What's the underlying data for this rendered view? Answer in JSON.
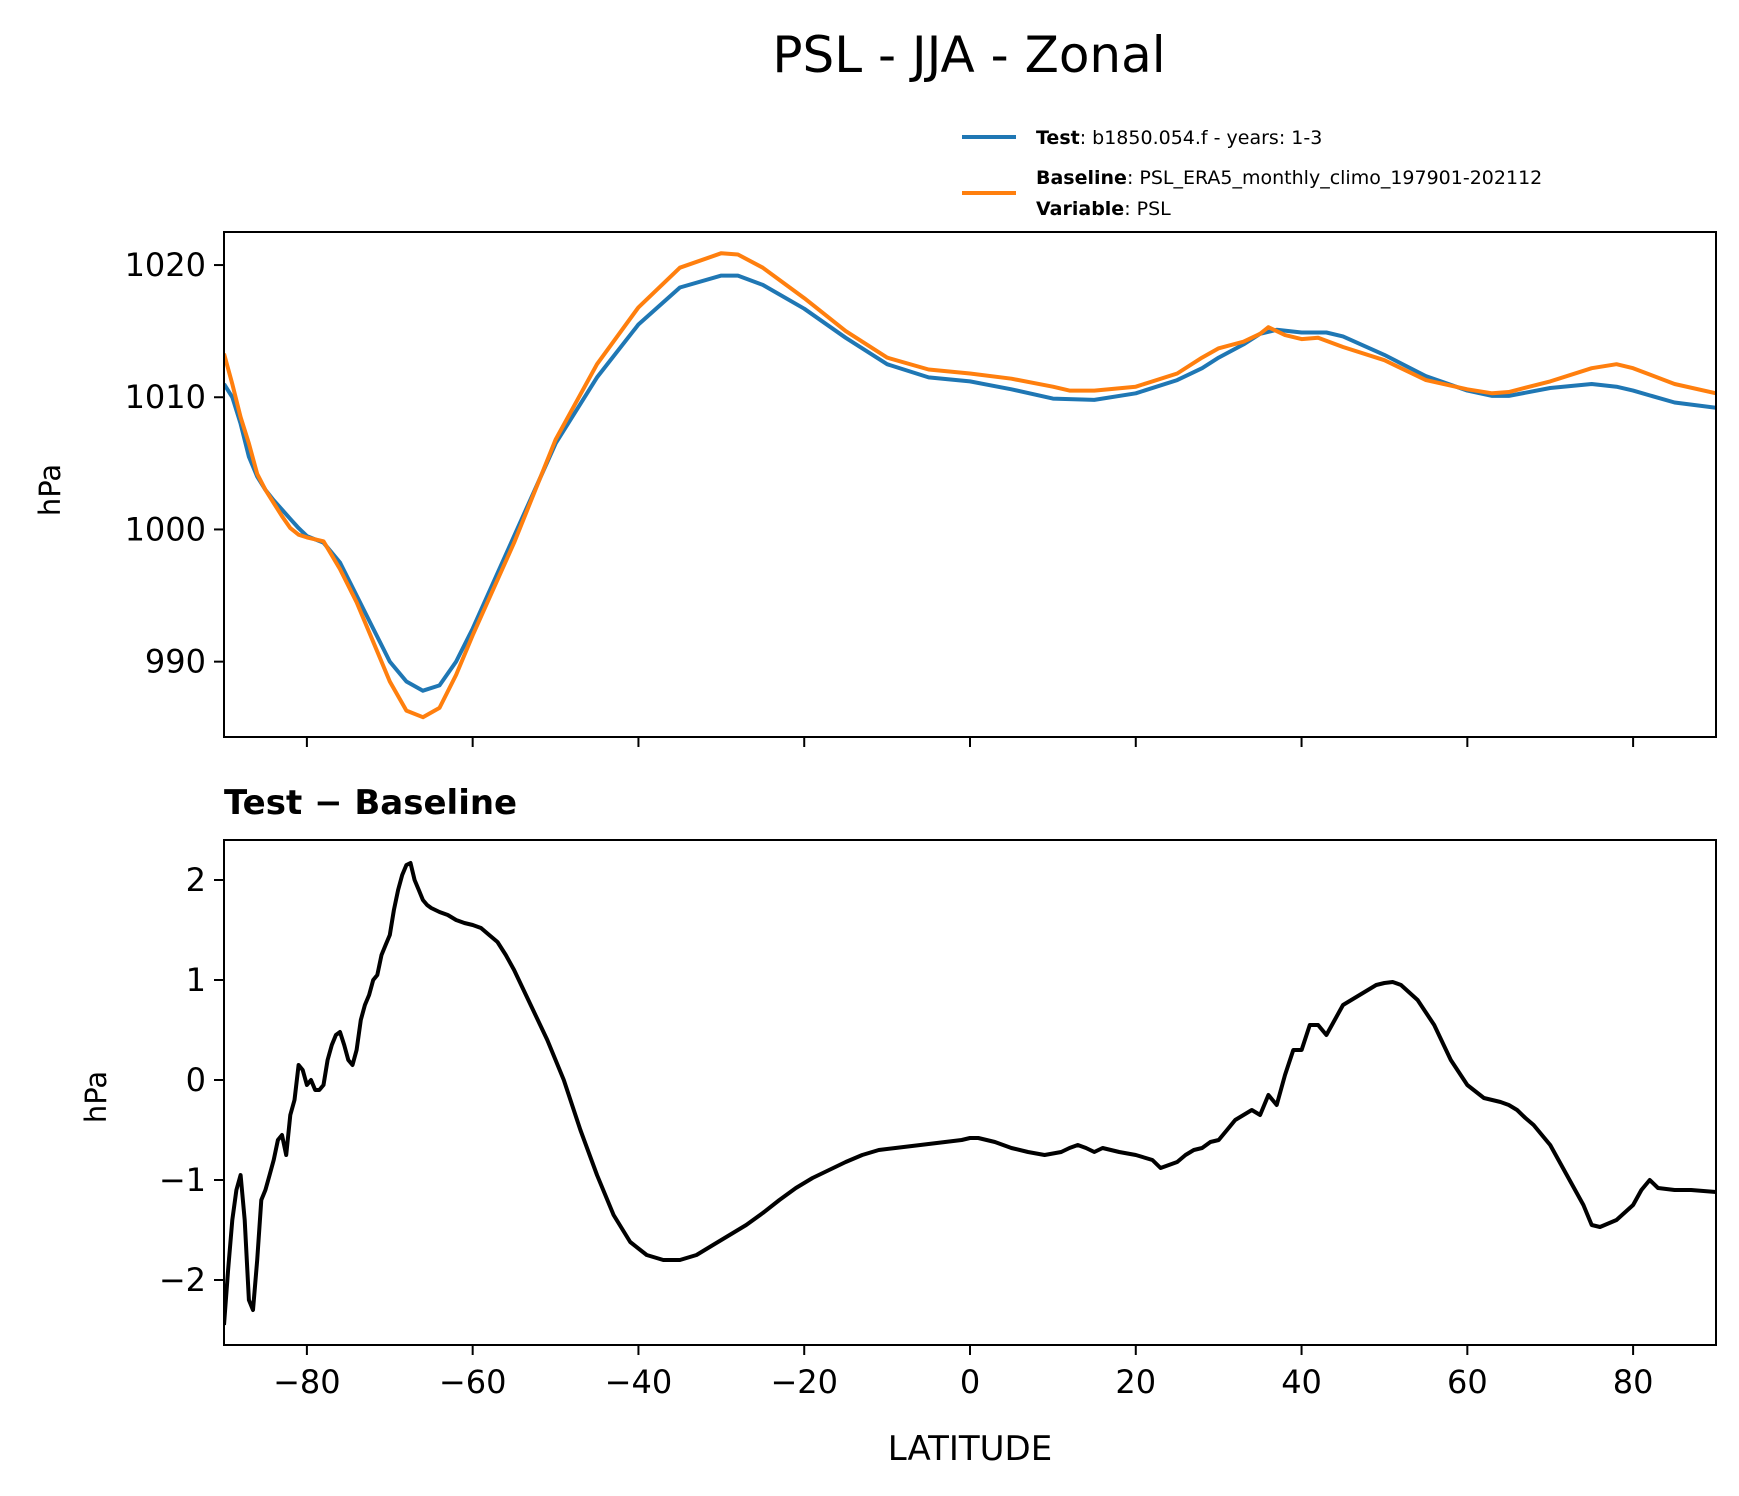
{
  "title": "PSL - JJA - Zonal",
  "legend": {
    "test_label": "Test",
    "test_value": ": b1850.054.f - years: 1-3",
    "baseline_label": "Baseline",
    "baseline_value": ": PSL_ERA5_monthly_climo_197901-202112",
    "variable_label": "Variable",
    "variable_value": ": PSL"
  },
  "colors": {
    "test": "#1f77b4",
    "baseline": "#ff7f0e",
    "difference": "#000000"
  },
  "chart_data": [
    {
      "type": "line",
      "ylabel": "hPa",
      "xlim": [
        -90,
        90
      ],
      "ylim": [
        984.3,
        1022.5
      ],
      "yticks": [
        "990",
        "1000",
        "1010",
        "1020"
      ],
      "xticks": [
        -80,
        -60,
        -40,
        -20,
        0,
        20,
        40,
        60,
        80
      ],
      "legend_position": "top-right, above plot",
      "grid": false,
      "series": [
        {
          "name": "Test",
          "x": [
            -90,
            -89,
            -88,
            -87,
            -86,
            -85,
            -84,
            -83,
            -82,
            -81,
            -80,
            -78,
            -76,
            -74,
            -72,
            -70,
            -68,
            -66,
            -64,
            -62,
            -60,
            -55,
            -50,
            -45,
            -40,
            -35,
            -30,
            -28,
            -25,
            -20,
            -15,
            -10,
            -5,
            0,
            5,
            10,
            15,
            20,
            25,
            28,
            30,
            33,
            35,
            37,
            40,
            43,
            45,
            50,
            55,
            60,
            63,
            65,
            70,
            75,
            78,
            80,
            85,
            90
          ],
          "y": [
            1011,
            1010,
            1008,
            1005.5,
            1004,
            1003,
            1002.2,
            1001.5,
            1000.8,
            1000.1,
            999.5,
            999,
            997.5,
            995,
            992.5,
            990,
            988.5,
            987.8,
            988.2,
            990,
            992.5,
            999.5,
            1006.5,
            1011.5,
            1015.5,
            1018.3,
            1019.2,
            1019.2,
            1018.5,
            1016.7,
            1014.5,
            1012.5,
            1011.5,
            1011.2,
            1010.6,
            1009.9,
            1009.8,
            1010.3,
            1011.3,
            1012.2,
            1013,
            1014,
            1014.8,
            1015.1,
            1014.9,
            1014.9,
            1014.6,
            1013.2,
            1011.6,
            1010.5,
            1010.1,
            1010.1,
            1010.7,
            1011,
            1010.8,
            1010.5,
            1009.6,
            1009.2
          ]
        },
        {
          "name": "Baseline",
          "x": [
            -90,
            -89,
            -88,
            -87,
            -86,
            -85,
            -84,
            -83,
            -82,
            -81,
            -80,
            -78,
            -76,
            -74,
            -72,
            -70,
            -68,
            -66,
            -64,
            -62,
            -60,
            -55,
            -50,
            -45,
            -40,
            -35,
            -30,
            -28,
            -25,
            -20,
            -15,
            -10,
            -5,
            0,
            5,
            10,
            12,
            15,
            20,
            25,
            28,
            30,
            33,
            35,
            36,
            38,
            40,
            42,
            45,
            50,
            55,
            60,
            63,
            65,
            70,
            75,
            78,
            80,
            85,
            90
          ],
          "y": [
            1013.3,
            1011,
            1008.5,
            1006.5,
            1004.2,
            1003,
            1002,
            1001,
            1000.1,
            999.6,
            999.4,
            999.1,
            997,
            994.5,
            991.5,
            988.5,
            986.3,
            985.8,
            986.5,
            989,
            992,
            999,
            1006.8,
            1012.5,
            1016.8,
            1019.8,
            1020.9,
            1020.8,
            1019.8,
            1017.5,
            1015,
            1013,
            1012.1,
            1011.8,
            1011.4,
            1010.8,
            1010.5,
            1010.5,
            1010.8,
            1011.8,
            1013,
            1013.7,
            1014.2,
            1014.8,
            1015.3,
            1014.7,
            1014.4,
            1014.5,
            1013.8,
            1012.8,
            1011.3,
            1010.6,
            1010.3,
            1010.4,
            1011.2,
            1012.2,
            1012.5,
            1012.2,
            1011,
            1010.3
          ]
        }
      ]
    },
    {
      "type": "line",
      "title": "Test − Baseline",
      "ylabel": "hPa",
      "xlabel": "LATITUDE",
      "xlim": [
        -90,
        90
      ],
      "ylim": [
        -2.65,
        2.4
      ],
      "yticks": [
        "−2",
        "−1",
        "0",
        "1",
        "2"
      ],
      "xtick_labels": [
        "−80",
        "−60",
        "−40",
        "−20",
        "0",
        "20",
        "40",
        "60",
        "80"
      ],
      "grid": false,
      "series": [
        {
          "x": [
            -90,
            -89.5,
            -89,
            -88.5,
            -88,
            -87.5,
            -87,
            -86.5,
            -86,
            -85.5,
            -85,
            -84.5,
            -84,
            -83.5,
            -83,
            -82.5,
            -82,
            -81.5,
            -81,
            -80.5,
            -80,
            -79.5,
            -79,
            -78.5,
            -78,
            -77.5,
            -77,
            -76.5,
            -76,
            -75.5,
            -75,
            -74.5,
            -74,
            -73.5,
            -73,
            -72.5,
            -72,
            -71.5,
            -71,
            -70.5,
            -70,
            -69.5,
            -69,
            -68.5,
            -68,
            -67.5,
            -67,
            -66.5,
            -66,
            -65.5,
            -65,
            -64,
            -63,
            -62,
            -61,
            -60,
            -59,
            -58,
            -57,
            -56,
            -55,
            -53,
            -51,
            -49,
            -47,
            -45,
            -43,
            -41,
            -39,
            -37,
            -35,
            -33,
            -31,
            -29,
            -27,
            -25,
            -23,
            -21,
            -19,
            -17,
            -15,
            -13,
            -11,
            -9,
            -7,
            -5,
            -3,
            -1,
            0,
            1,
            2,
            3,
            5,
            7,
            9,
            11,
            12,
            13,
            14,
            15,
            16,
            17,
            18,
            20,
            22,
            23,
            25,
            26,
            27,
            28,
            29,
            30,
            31,
            32,
            33,
            34,
            35,
            36,
            37,
            38,
            39,
            40,
            41,
            42,
            43,
            44,
            45,
            46,
            47,
            48,
            49,
            50,
            51,
            52,
            54,
            56,
            58,
            60,
            62,
            64,
            65,
            66,
            67,
            68,
            70,
            72,
            73,
            74,
            75,
            76,
            78,
            80,
            81,
            82,
            83,
            85,
            87,
            90
          ],
          "y": [
            -2.45,
            -1.9,
            -1.4,
            -1.1,
            -0.95,
            -1.4,
            -2.2,
            -2.3,
            -1.8,
            -1.2,
            -1.1,
            -0.95,
            -0.8,
            -0.6,
            -0.55,
            -0.75,
            -0.35,
            -0.2,
            0.15,
            0.1,
            -0.05,
            0,
            -0.1,
            -0.1,
            -0.05,
            0.2,
            0.35,
            0.45,
            0.48,
            0.35,
            0.2,
            0.15,
            0.3,
            0.6,
            0.75,
            0.85,
            1.0,
            1.05,
            1.25,
            1.35,
            1.45,
            1.7,
            1.9,
            2.05,
            2.15,
            2.17,
            2.0,
            1.9,
            1.8,
            1.75,
            1.72,
            1.68,
            1.65,
            1.6,
            1.57,
            1.55,
            1.52,
            1.45,
            1.38,
            1.25,
            1.1,
            0.75,
            0.4,
            0.0,
            -0.5,
            -0.95,
            -1.35,
            -1.62,
            -1.75,
            -1.8,
            -1.8,
            -1.75,
            -1.65,
            -1.55,
            -1.45,
            -1.33,
            -1.2,
            -1.08,
            -0.98,
            -0.9,
            -0.82,
            -0.75,
            -0.7,
            -0.68,
            -0.66,
            -0.64,
            -0.62,
            -0.6,
            -0.58,
            -0.58,
            -0.6,
            -0.62,
            -0.68,
            -0.72,
            -0.75,
            -0.72,
            -0.68,
            -0.65,
            -0.68,
            -0.72,
            -0.68,
            -0.7,
            -0.72,
            -0.75,
            -0.8,
            -0.88,
            -0.82,
            -0.75,
            -0.7,
            -0.68,
            -0.62,
            -0.6,
            -0.5,
            -0.4,
            -0.35,
            -0.3,
            -0.35,
            -0.15,
            -0.25,
            0.05,
            0.3,
            0.3,
            0.55,
            0.55,
            0.45,
            0.6,
            0.75,
            0.8,
            0.85,
            0.9,
            0.95,
            0.97,
            0.98,
            0.95,
            0.8,
            0.55,
            0.2,
            -0.05,
            -0.18,
            -0.22,
            -0.25,
            -0.3,
            -0.38,
            -0.45,
            -0.65,
            -0.95,
            -1.1,
            -1.25,
            -1.45,
            -1.47,
            -1.4,
            -1.25,
            -1.1,
            -1.0,
            -1.08,
            -1.1,
            -1.1,
            -1.12
          ]
        }
      ]
    }
  ]
}
